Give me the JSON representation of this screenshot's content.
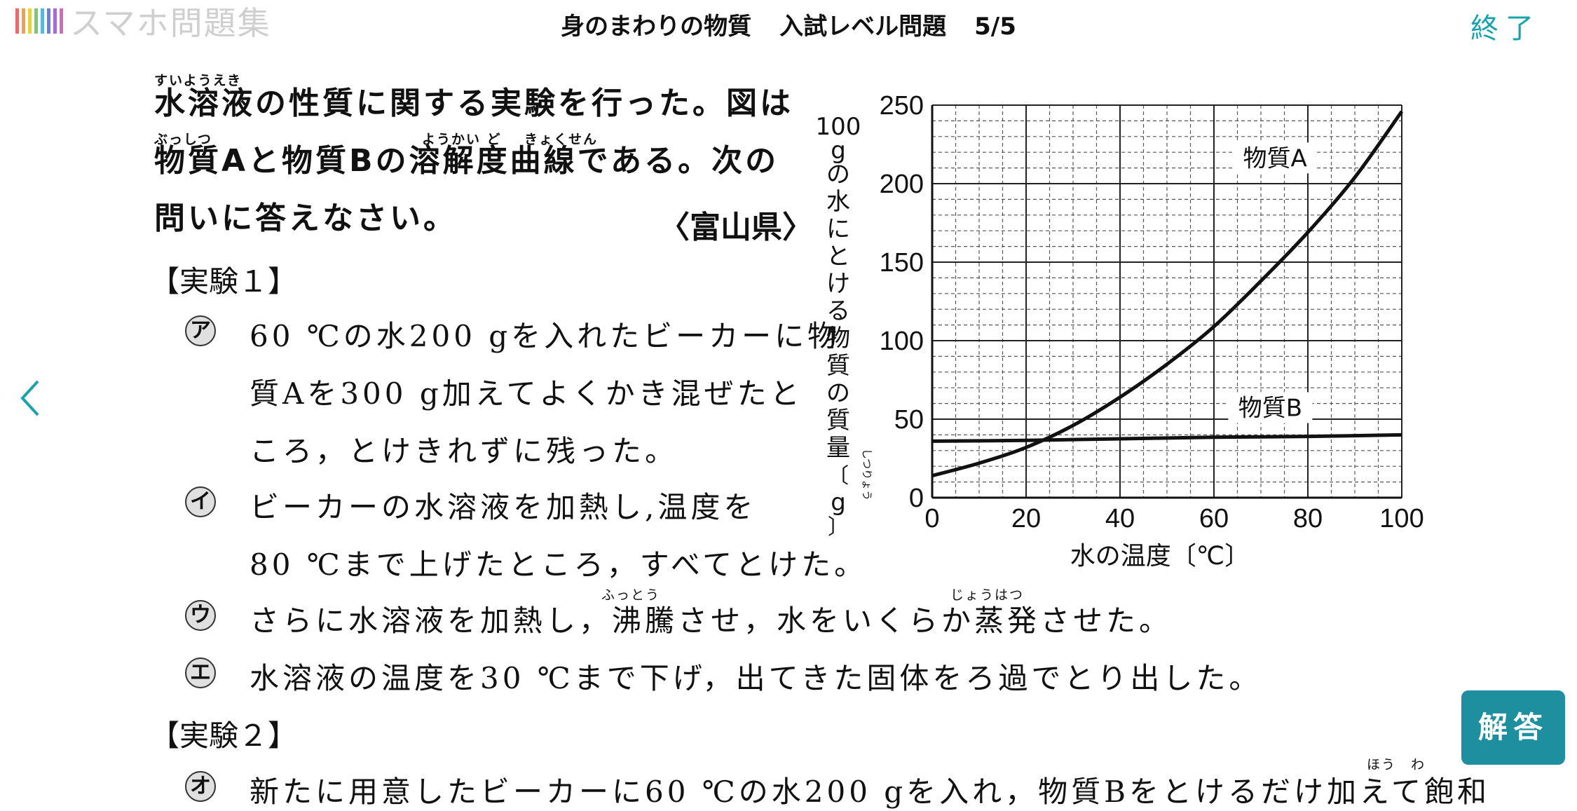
{
  "header": {
    "app_name": "スマホ問題集",
    "title_main": "身のまわりの物質",
    "title_level": "入試レベル問題",
    "title_page": "5/5",
    "finish_label": "終了",
    "logo_colors": [
      "#e86a6a",
      "#f0a04b",
      "#e8d04b",
      "#7cc96b",
      "#5bb7d6",
      "#6b7fd6",
      "#a86bd6",
      "#d66bb5"
    ]
  },
  "nav": {
    "prev_icon": "chevron-left-icon"
  },
  "question": {
    "ruby_1": "すいようえき",
    "line1": "水溶液の性質に関する実験を行った。図は",
    "ruby_2a": "ぶっしつ",
    "ruby_2b": "ようかい ど",
    "ruby_2c": "きょくせん",
    "line2": "物質Aと物質Bの溶解度曲線である。次の",
    "line3": "問いに答えなさい。",
    "source": "〈富山県〉"
  },
  "experiment1": {
    "heading": "【実験１】",
    "steps": [
      {
        "mark": "ア",
        "lines": [
          "60 ℃の水200 gを入れたビーカーに物",
          "質Aを300 g加えてよくかき混ぜたと",
          "ころ，とけきれずに残った。"
        ]
      },
      {
        "mark": "イ",
        "lines": [
          "ビーカーの水溶液を加熱し,温度を",
          "80 ℃まで上げたところ，すべてとけた。"
        ]
      },
      {
        "mark": "ウ",
        "lines": [
          "さらに水溶液を加熱し，沸騰させ，水をいくらか蒸発させた。"
        ],
        "ruby_a": "ふっとう",
        "ruby_b": "じょうはつ"
      },
      {
        "mark": "エ",
        "lines": [
          "水溶液の温度を30 ℃まで下げ，出てきた固体をろ過でとり出した。"
        ]
      }
    ]
  },
  "experiment2": {
    "heading": "【実験２】",
    "steps": [
      {
        "mark": "オ",
        "lines": [
          "新たに用意したビーカーに60 ℃の水200 gを入れ，物質Bをとけるだけ加えて飽和"
        ],
        "ruby": "ほう　わ"
      }
    ]
  },
  "chart_data": {
    "type": "line",
    "xlabel": "水の温度〔℃〕",
    "ylabel": "100gの水にとける物質の質量〔g〕",
    "ylabel_ruby": "しつりょう",
    "xlim": [
      0,
      100
    ],
    "ylim": [
      0,
      250
    ],
    "x_ticks": [
      0,
      20,
      40,
      60,
      80,
      100
    ],
    "y_ticks": [
      0,
      50,
      100,
      150,
      200,
      250
    ],
    "grid": true,
    "series": [
      {
        "name": "物質A",
        "x": [
          0,
          10,
          20,
          30,
          40,
          50,
          60,
          70,
          80,
          90,
          100
        ],
        "values": [
          14,
          22,
          32,
          46,
          64,
          85,
          109,
          138,
          169,
          204,
          246
        ]
      },
      {
        "name": "物質B",
        "x": [
          0,
          20,
          40,
          60,
          80,
          100
        ],
        "values": [
          36,
          36.5,
          37.5,
          38.5,
          39,
          40
        ]
      }
    ]
  },
  "answer_label": "解答"
}
